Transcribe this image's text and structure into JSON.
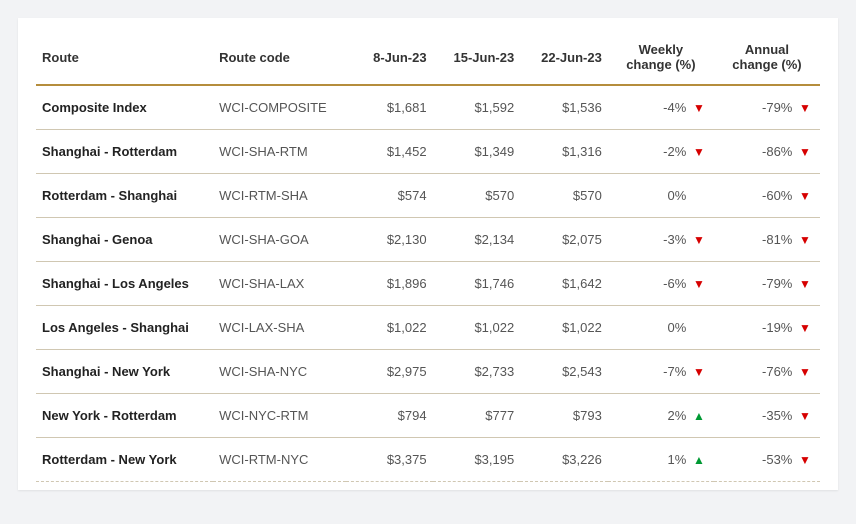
{
  "table": {
    "columns": {
      "route": "Route",
      "code": "Route code",
      "d1": "8-Jun-23",
      "d2": "15-Jun-23",
      "d3": "22-Jun-23",
      "weekly_line1": "Weekly",
      "weekly_line2": "change (%)",
      "annual_line1": "Annual",
      "annual_line2": "change (%)"
    },
    "header_border_color": "#b58d3c",
    "row_border_color": "#d0c7b2",
    "background_color": "#ffffff",
    "page_background": "#f2f3f5",
    "font_size_pt": 10,
    "arrow_down": "▼",
    "arrow_up": "▲",
    "arrow_none": "",
    "rows": [
      {
        "route": "Composite Index",
        "code": "WCI-COMPOSITE",
        "d1": "$1,681",
        "d2": "$1,592",
        "d3": "$1,536",
        "weekly_pct": "-4%",
        "weekly_dir": "down",
        "annual_pct": "-79%",
        "annual_dir": "down"
      },
      {
        "route": "Shanghai - Rotterdam",
        "code": "WCI-SHA-RTM",
        "d1": "$1,452",
        "d2": "$1,349",
        "d3": "$1,316",
        "weekly_pct": "-2%",
        "weekly_dir": "down",
        "annual_pct": "-86%",
        "annual_dir": "down"
      },
      {
        "route": "Rotterdam - Shanghai",
        "code": "WCI-RTM-SHA",
        "d1": "$574",
        "d2": "$570",
        "d3": "$570",
        "weekly_pct": "0%",
        "weekly_dir": "none",
        "annual_pct": "-60%",
        "annual_dir": "down"
      },
      {
        "route": "Shanghai - Genoa",
        "code": "WCI-SHA-GOA",
        "d1": "$2,130",
        "d2": "$2,134",
        "d3": "$2,075",
        "weekly_pct": "-3%",
        "weekly_dir": "down",
        "annual_pct": "-81%",
        "annual_dir": "down"
      },
      {
        "route": "Shanghai - Los Angeles",
        "code": "WCI-SHA-LAX",
        "d1": "$1,896",
        "d2": "$1,746",
        "d3": "$1,642",
        "weekly_pct": "-6%",
        "weekly_dir": "down",
        "annual_pct": "-79%",
        "annual_dir": "down"
      },
      {
        "route": "Los Angeles - Shanghai",
        "code": "WCI-LAX-SHA",
        "d1": "$1,022",
        "d2": "$1,022",
        "d3": "$1,022",
        "weekly_pct": "0%",
        "weekly_dir": "none",
        "annual_pct": "-19%",
        "annual_dir": "down"
      },
      {
        "route": "Shanghai - New York",
        "code": "WCI-SHA-NYC",
        "d1": "$2,975",
        "d2": "$2,733",
        "d3": "$2,543",
        "weekly_pct": "-7%",
        "weekly_dir": "down",
        "annual_pct": "-76%",
        "annual_dir": "down"
      },
      {
        "route": "New York - Rotterdam",
        "code": "WCI-NYC-RTM",
        "d1": "$794",
        "d2": "$777",
        "d3": "$793",
        "weekly_pct": "2%",
        "weekly_dir": "up",
        "annual_pct": "-35%",
        "annual_dir": "down"
      },
      {
        "route": "Rotterdam - New York",
        "code": "WCI-RTM-NYC",
        "d1": "$3,375",
        "d2": "$3,195",
        "d3": "$3,226",
        "weekly_pct": "1%",
        "weekly_dir": "up",
        "annual_pct": "-53%",
        "annual_dir": "down"
      }
    ]
  }
}
